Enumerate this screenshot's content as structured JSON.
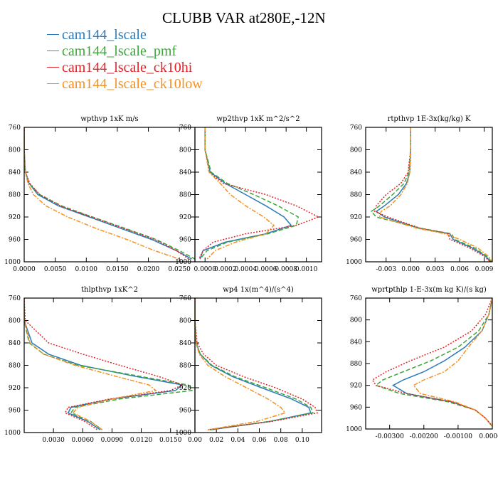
{
  "figure_title": "CLUBB VAR at280E,-12N",
  "legend": [
    {
      "name": "cam144_lscale",
      "color": "#2b7bb9"
    },
    {
      "name": "cam144_lscale_pmf",
      "color": "#3da63a"
    },
    {
      "name": "cam144_lscale_ck10hi",
      "color": "#e0242a"
    },
    {
      "name": "cam144_lscale_ck10low",
      "color": "#f7901e"
    }
  ],
  "chart_data": [
    {
      "type": "line",
      "title": "wpthvp  1xK m/s",
      "y_ticks": [
        760,
        800,
        840,
        880,
        920,
        960,
        1000
      ],
      "ylim": [
        1000,
        760
      ],
      "xlim": [
        0.0,
        0.0275
      ],
      "x_ticks": [
        0.0,
        0.005,
        0.01,
        0.015,
        0.02,
        0.025
      ],
      "x_tick_labels": [
        "0.0000",
        "0.0050",
        "0.0100",
        "0.0150",
        "0.0200",
        "0.0250"
      ],
      "y": [
        760,
        800,
        840,
        860,
        880,
        900,
        920,
        940,
        960,
        980,
        995
      ],
      "series": [
        {
          "name": "cam144_lscale",
          "values": [
            0,
            0,
            0.0002,
            0.0008,
            0.0022,
            0.0055,
            0.0105,
            0.0155,
            0.0205,
            0.0245,
            0.027
          ]
        },
        {
          "name": "cam144_lscale_pmf",
          "values": [
            0,
            0,
            0.0002,
            0.0008,
            0.0025,
            0.006,
            0.011,
            0.0162,
            0.0212,
            0.025,
            0.0275
          ]
        },
        {
          "name": "cam144_lscale_ck10hi",
          "values": [
            0,
            0,
            0.0002,
            0.0009,
            0.0025,
            0.0058,
            0.0108,
            0.016,
            0.021,
            0.0245,
            0.0265
          ]
        },
        {
          "name": "cam144_lscale_ck10low",
          "values": [
            0,
            0,
            0.0002,
            0.0006,
            0.0015,
            0.0035,
            0.007,
            0.0115,
            0.0165,
            0.021,
            0.025
          ]
        }
      ]
    },
    {
      "type": "line",
      "title": "wp2thvp  1xK m^2/s^2",
      "y_ticks": [
        760,
        800,
        840,
        880,
        920,
        960,
        1000
      ],
      "ylim": [
        1000,
        760
      ],
      "xlim": [
        -0.0001,
        0.00115
      ],
      "x_ticks": [
        0.0,
        0.0002,
        0.0004,
        0.0006,
        0.0008,
        0.001
      ],
      "x_tick_labels": [
        "0.0000",
        "0.0002",
        "0.0004",
        "0.0006",
        "0.0008",
        "0.0010"
      ],
      "y": [
        760,
        800,
        840,
        860,
        880,
        900,
        920,
        935,
        950,
        965,
        980,
        995
      ],
      "series": [
        {
          "name": "cam144_lscale",
          "values": [
            0,
            0,
            5e-05,
            0.0002,
            0.0004,
            0.0006,
            0.00078,
            0.00085,
            0.0006,
            0.0002,
            -2e-05,
            -5e-05
          ]
        },
        {
          "name": "cam144_lscale_pmf",
          "values": [
            0,
            0,
            6e-05,
            0.00022,
            0.00048,
            0.00072,
            0.00092,
            0.0009,
            0.00062,
            0.00022,
            2e-05,
            -5e-05
          ]
        },
        {
          "name": "cam144_lscale_ck10hi",
          "values": [
            0,
            0,
            4e-05,
            0.00018,
            0.0006,
            0.0009,
            0.00112,
            0.0009,
            0.0004,
            8e-05,
            -2e-05,
            -6e-05
          ]
        },
        {
          "name": "cam144_lscale_ck10low",
          "values": [
            0,
            0,
            4e-05,
            0.00015,
            0.00025,
            0.0004,
            0.00058,
            0.00068,
            0.0006,
            0.0003,
            0.0001,
            2e-05
          ]
        }
      ]
    },
    {
      "type": "line",
      "title": "rtpthvp  1E-3x(kg/kg) K",
      "y_ticks": [
        760,
        800,
        840,
        880,
        920,
        960,
        1000
      ],
      "ylim": [
        1000,
        760
      ],
      "xlim": [
        -0.0055,
        0.01
      ],
      "x_ticks": [
        -0.003,
        0.0,
        0.003,
        0.006,
        0.009
      ],
      "x_tick_labels": [
        "-0.003",
        "0.000",
        "0.003",
        "0.006",
        "0.009"
      ],
      "y": [
        760,
        800,
        840,
        860,
        880,
        900,
        910,
        920,
        940,
        950,
        960,
        975,
        990,
        1000
      ],
      "series": [
        {
          "name": "cam144_lscale",
          "values": [
            0,
            0,
            -0.0001,
            -0.0005,
            -0.0015,
            -0.0032,
            -0.0042,
            -0.0032,
            0.001,
            0.0048,
            0.0052,
            0.0075,
            0.0092,
            0.0098
          ]
        },
        {
          "name": "cam144_lscale_pmf",
          "values": [
            0,
            0,
            -0.0002,
            -0.0008,
            -0.0022,
            -0.0038,
            -0.0048,
            -0.0042,
            0.0012,
            0.005,
            0.0054,
            0.0078,
            0.0093,
            0.0099
          ]
        },
        {
          "name": "cam144_lscale_ck10hi",
          "values": [
            0,
            0,
            -0.0003,
            -0.0012,
            -0.003,
            -0.0042,
            -0.0044,
            -0.0028,
            0.0012,
            0.0046,
            0.0048,
            0.0072,
            0.009,
            0.0097
          ]
        },
        {
          "name": "cam144_lscale_ck10low",
          "values": [
            0,
            0,
            -0.0001,
            -0.0004,
            -0.0012,
            -0.0025,
            -0.0036,
            -0.0038,
            0.0008,
            0.0042,
            0.006,
            0.0082,
            0.0095,
            0.01
          ]
        }
      ]
    },
    {
      "type": "line",
      "title": "thlpthvp  1xK^2",
      "y_ticks": [
        760,
        800,
        840,
        880,
        920,
        960,
        1000
      ],
      "ylim": [
        1000,
        760
      ],
      "xlim": [
        0.0,
        0.0175
      ],
      "x_ticks": [
        0.003,
        0.006,
        0.009,
        0.012,
        0.015
      ],
      "x_tick_labels": [
        "0.0030",
        "0.0060",
        "0.0090",
        "0.0120",
        "0.0150"
      ],
      "y": [
        760,
        800,
        840,
        860,
        880,
        900,
        915,
        925,
        940,
        955,
        965,
        980,
        995
      ],
      "series": [
        {
          "name": "cam144_lscale",
          "values": [
            0,
            0,
            0.0008,
            0.0025,
            0.0058,
            0.0115,
            0.0162,
            0.0155,
            0.009,
            0.0048,
            0.0045,
            0.0065,
            0.0078
          ]
        },
        {
          "name": "cam144_lscale_pmf",
          "values": [
            0,
            0,
            0.0005,
            0.002,
            0.0055,
            0.012,
            0.0168,
            0.0172,
            0.0098,
            0.0052,
            0.0048,
            0.0068,
            0.008
          ]
        },
        {
          "name": "cam144_lscale_ck10hi",
          "values": [
            0,
            0.0001,
            0.0025,
            0.006,
            0.0098,
            0.0138,
            0.0162,
            0.015,
            0.0088,
            0.0045,
            0.0042,
            0.0062,
            0.0075
          ]
        },
        {
          "name": "cam144_lscale_ck10low",
          "values": [
            0,
            0,
            0.0006,
            0.002,
            0.0052,
            0.0095,
            0.0128,
            0.0135,
            0.009,
            0.0055,
            0.005,
            0.0068,
            0.008
          ]
        }
      ]
    },
    {
      "type": "line",
      "title": "wp4  1x(m^4)/(s^4)",
      "y_ticks": [
        760,
        800,
        840,
        880,
        920,
        960,
        1000
      ],
      "ylim": [
        1000,
        760
      ],
      "xlim": [
        0.0,
        0.118
      ],
      "x_ticks": [
        0.0,
        0.02,
        0.04,
        0.06,
        0.08,
        0.1
      ],
      "x_tick_labels": [
        "0.00",
        "0.02",
        "0.04",
        "0.06",
        "0.08",
        "0.10"
      ],
      "y": [
        760,
        800,
        840,
        860,
        880,
        900,
        920,
        940,
        955,
        965,
        980,
        995
      ],
      "series": [
        {
          "name": "cam144_lscale",
          "values": [
            0,
            0,
            0.001,
            0.005,
            0.015,
            0.035,
            0.062,
            0.09,
            0.106,
            0.108,
            0.07,
            0.015
          ]
        },
        {
          "name": "cam144_lscale_pmf",
          "values": [
            0,
            0,
            0.001,
            0.005,
            0.016,
            0.037,
            0.066,
            0.094,
            0.108,
            0.11,
            0.07,
            0.014
          ]
        },
        {
          "name": "cam144_lscale_ck10hi",
          "values": [
            0,
            0,
            0.002,
            0.008,
            0.02,
            0.045,
            0.075,
            0.1,
            0.112,
            0.114,
            0.072,
            0.012
          ]
        },
        {
          "name": "cam144_lscale_ck10low",
          "values": [
            0,
            0,
            0.001,
            0.004,
            0.012,
            0.028,
            0.048,
            0.068,
            0.08,
            0.084,
            0.058,
            0.012
          ]
        }
      ]
    },
    {
      "type": "line",
      "title": "wprtpthlp  1-E-3x(m kg K)/(s kg)",
      "y_ticks": [
        760,
        800,
        840,
        880,
        920,
        960,
        1000
      ],
      "ylim": [
        1000,
        760
      ],
      "xlim": [
        -0.0037,
        0.0
      ],
      "x_ticks": [
        -0.003,
        -0.002,
        -0.001,
        0.0
      ],
      "x_tick_labels": [
        "-0.00300",
        "-0.00200",
        "-0.00100",
        "0.00000"
      ],
      "y": [
        760,
        790,
        820,
        850,
        875,
        895,
        910,
        920,
        935,
        950,
        965,
        980,
        995
      ],
      "series": [
        {
          "name": "cam144_lscale",
          "values": [
            0,
            -0.0001,
            -0.0003,
            -0.0008,
            -0.0014,
            -0.002,
            -0.0026,
            -0.0029,
            -0.0025,
            -0.0012,
            -0.0005,
            -0.0002,
            0
          ]
        },
        {
          "name": "cam144_lscale_pmf",
          "values": [
            0,
            -0.0001,
            -0.0004,
            -0.001,
            -0.0018,
            -0.0026,
            -0.0032,
            -0.0034,
            -0.0027,
            -0.0013,
            -0.0005,
            -0.0002,
            0
          ]
        },
        {
          "name": "cam144_lscale_ck10hi",
          "values": [
            0,
            -0.0002,
            -0.0006,
            -0.0014,
            -0.0024,
            -0.0031,
            -0.0035,
            -0.0034,
            -0.0025,
            -0.0012,
            -0.0005,
            -0.0002,
            0
          ]
        },
        {
          "name": "cam144_lscale_ck10low",
          "values": [
            0,
            -0.0001,
            -0.0003,
            -0.0007,
            -0.001,
            -0.0014,
            -0.002,
            -0.0023,
            -0.0021,
            -0.0011,
            -0.0005,
            -0.0002,
            0
          ]
        }
      ]
    }
  ]
}
